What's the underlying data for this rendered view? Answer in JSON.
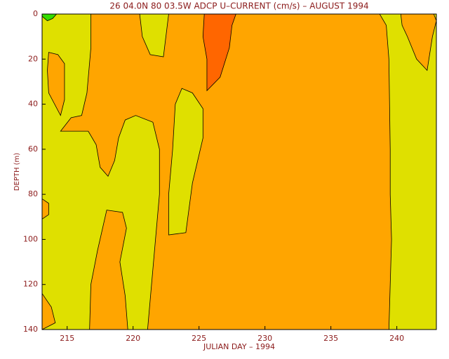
{
  "chart_data": {
    "type": "contour",
    "title": "26 04.0N 80 03.5W ADCP U–CURRENT (cm/s) – AUGUST 1994",
    "x_label": "JULIAN DAY – 1994",
    "y_label": "DEPTH (m)",
    "xlim": [
      213.1,
      243
    ],
    "xticks": [
      215,
      220,
      225,
      230,
      235,
      240
    ],
    "ylim": [
      0,
      140
    ],
    "y_inverted": true,
    "yticks": [
      0,
      20,
      40,
      60,
      80,
      100,
      120,
      140
    ],
    "background_color": "#dfe000",
    "series": [
      {
        "color": "#ffa500",
        "x": [
          216.8,
          220.5,
          220.7,
          221.3,
          222.3,
          222.7,
          238.7,
          239.2,
          239.4,
          239.5,
          239.5,
          239.6,
          239.5,
          239.4,
          221.1,
          221.4,
          221.7,
          222,
          222,
          221.5,
          220.2,
          219.4,
          218.9,
          218.6,
          218.1,
          217.5,
          217.2,
          216.6,
          214.5,
          215.3,
          216.1,
          216.5,
          216.8
        ],
        "y": [
          0,
          0,
          10,
          18,
          19,
          0,
          0,
          5,
          20,
          60,
          80,
          100,
          120,
          140,
          140,
          120,
          100,
          80,
          60,
          48,
          45,
          47,
          55,
          65,
          72,
          68,
          58,
          52,
          52,
          46,
          45,
          35,
          15
        ]
      },
      {
        "color": "#dfe000",
        "x": [
          223.7,
          224.5,
          225.3,
          225.3,
          224.5,
          224,
          222.7,
          222.7,
          223,
          223.2
        ],
        "y": [
          33,
          35,
          42,
          55,
          75,
          97,
          98,
          80,
          60,
          40
        ]
      },
      {
        "color": "#ffa500",
        "x": [
          213.6,
          214.3,
          214.8,
          214.8,
          214.5,
          213.6,
          213.5
        ],
        "y": [
          17,
          18,
          22,
          38,
          45,
          35,
          25
        ]
      },
      {
        "color": "#ffa500",
        "x": [
          218,
          219.2,
          219.5,
          219,
          219.4,
          219.6,
          216.7,
          216.8,
          217.3
        ],
        "y": [
          87,
          88,
          95,
          110,
          125,
          140,
          140,
          120,
          105
        ]
      },
      {
        "color": "#ffa500",
        "x": [
          213.1,
          213.6,
          213.6,
          213.1
        ],
        "y": [
          82,
          84,
          89,
          91
        ]
      },
      {
        "color": "#ffa500",
        "x": [
          213.1,
          213.8,
          214.1,
          213.1
        ],
        "y": [
          124,
          130,
          137,
          140
        ]
      },
      {
        "color": "#ffa500",
        "x": [
          240.3,
          242.8,
          243,
          242.7,
          242.3,
          241.5,
          240.8,
          240.4
        ],
        "y": [
          0,
          0,
          3,
          10,
          25,
          20,
          10,
          5
        ]
      },
      {
        "color": "#ff6600",
        "x": [
          225.4,
          227.8,
          227.5,
          227.3,
          226.6,
          225.6,
          225.6,
          225.3
        ],
        "y": [
          0,
          0,
          5,
          15,
          28,
          34,
          20,
          10
        ]
      },
      {
        "color": "#33dd00",
        "x": [
          213.1,
          214.2,
          213.9,
          213.5,
          213.1
        ],
        "y": [
          0,
          0,
          2,
          3,
          1
        ]
      }
    ]
  }
}
